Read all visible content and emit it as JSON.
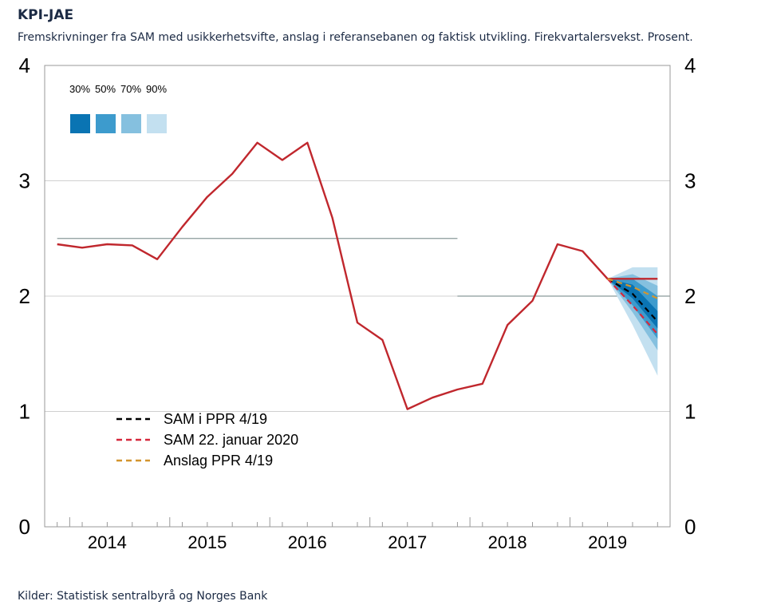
{
  "header": {
    "title": "KPI-JAE",
    "subtitle": "Fremskrivninger fra SAM med usikkerhetsvifte, anslag i referansebanen og faktisk utvikling. Firekvartalersvekst. Prosent."
  },
  "footer": {
    "source": "Kilder: Statistisk sentralbyrå og Norges Bank"
  },
  "colors": {
    "actual": "#c0272d",
    "sam_ppr": "#000000",
    "sam_jan": "#d6283c",
    "anslag": "#d4952e",
    "band90": "#c3e0f0",
    "band70": "#85c0df",
    "band50": "#3d9bcd",
    "band30": "#0a74b3",
    "reference_line": "#8a9a9a",
    "frame": "#999999"
  },
  "chart_data": {
    "type": "line",
    "title": "KPI-JAE",
    "ylim": [
      0,
      4
    ],
    "yticks": [
      0,
      1,
      2,
      3,
      4
    ],
    "x_range": [
      2013.625,
      2019.875
    ],
    "year_labels": [
      "2014",
      "2015",
      "2016",
      "2017",
      "2018",
      "2019"
    ],
    "grid": "horizontal",
    "legend_position": "lower-left",
    "band_legend": [
      "30%",
      "50%",
      "70%",
      "90%"
    ],
    "series": [
      {
        "role": "actual",
        "x": [
          2013.75,
          2014.0,
          2014.25,
          2014.5,
          2014.75,
          2015.0,
          2015.25,
          2015.5,
          2015.75,
          2016.0,
          2016.25,
          2016.5,
          2016.75,
          2017.0,
          2017.25,
          2017.5,
          2017.75,
          2018.0,
          2018.25,
          2018.5,
          2018.75,
          2019.0,
          2019.25,
          2019.5,
          2019.75
        ],
        "values": [
          2.45,
          2.42,
          2.45,
          2.44,
          2.32,
          2.6,
          2.86,
          3.06,
          3.33,
          3.18,
          3.33,
          2.68,
          1.77,
          1.62,
          1.02,
          1.12,
          1.19,
          1.24,
          1.75,
          1.96,
          2.45,
          2.39,
          2.15,
          2.15,
          2.15
        ]
      },
      {
        "name": "SAM i PPR 4/19",
        "x": [
          2019.25,
          2019.5,
          2019.75
        ],
        "values": [
          2.15,
          2.02,
          1.78
        ]
      },
      {
        "name": "SAM 22. januar 2020",
        "x": [
          2019.25,
          2019.5,
          2019.75
        ],
        "values": [
          2.15,
          1.92,
          1.67
        ]
      },
      {
        "name": "Anslag PPR 4/19",
        "x": [
          2019.25,
          2019.5,
          2019.75
        ],
        "values": [
          2.15,
          2.08,
          1.98
        ]
      }
    ],
    "reference_lines": [
      {
        "x_from": 2013.75,
        "x_to": 2017.75,
        "y": 2.5
      },
      {
        "x_from": 2017.75,
        "x_to": 2019.875,
        "y": 2.0
      }
    ],
    "fan_chart": {
      "x": [
        2019.25,
        2019.5,
        2019.75
      ],
      "bands": [
        {
          "level": "90%",
          "lower": [
            2.15,
            1.75,
            1.31
          ],
          "upper": [
            2.15,
            2.25,
            2.25
          ]
        },
        {
          "level": "70%",
          "lower": [
            2.15,
            1.86,
            1.53
          ],
          "upper": [
            2.15,
            2.19,
            2.09
          ]
        },
        {
          "level": "50%",
          "lower": [
            2.15,
            1.92,
            1.63
          ],
          "upper": [
            2.15,
            2.15,
            2.0
          ]
        },
        {
          "level": "30%",
          "lower": [
            2.15,
            1.98,
            1.72
          ],
          "upper": [
            2.15,
            2.1,
            1.87
          ]
        }
      ]
    }
  }
}
